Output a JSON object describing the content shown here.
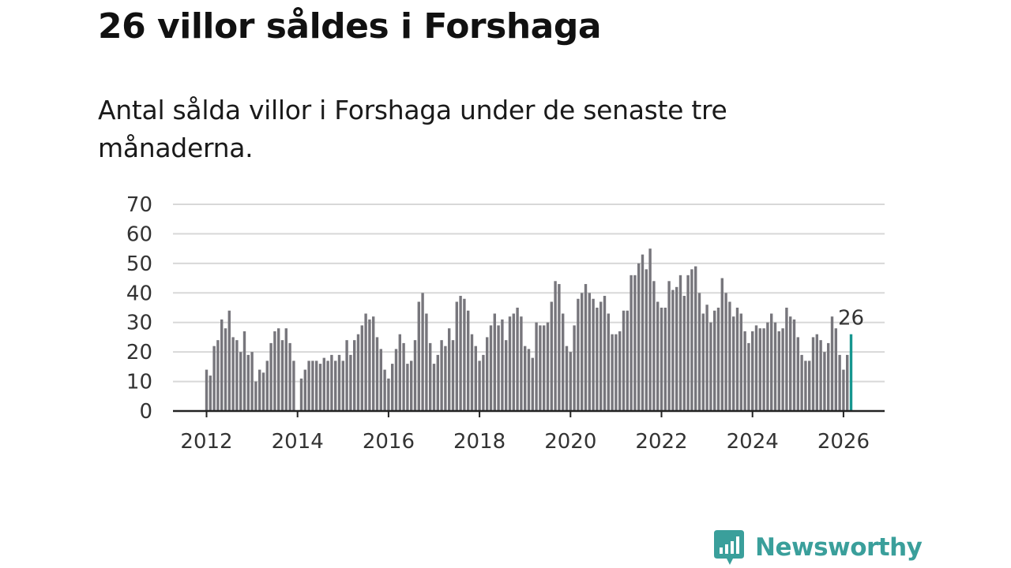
{
  "header": {
    "title": "26 villor såldes i Forshaga",
    "subtitle": "Antal sålda villor i Forshaga under de senaste tre månaderna."
  },
  "brand": {
    "name": "Newsworthy",
    "color": "#3a9f9b",
    "icon": "bar-chart-speech-bubble-icon"
  },
  "colors": {
    "bar": "#77767c",
    "highlight": "#16968f",
    "grid": "#d8d8d8",
    "axis": "#222222"
  },
  "chart_data": {
    "type": "bar",
    "title": "",
    "xlabel": "",
    "ylabel": "",
    "ylim": [
      0,
      70
    ],
    "y_ticks": [
      0,
      10,
      20,
      30,
      40,
      50,
      60,
      70
    ],
    "x_ticks": [
      "2012",
      "2014",
      "2016",
      "2018",
      "2020",
      "2022",
      "2024",
      "2026"
    ],
    "x_start": "2012-01",
    "period": "month",
    "values": [
      14,
      12,
      22,
      24,
      31,
      28,
      34,
      25,
      24,
      20,
      27,
      19,
      20,
      10,
      14,
      13,
      17,
      23,
      27,
      28,
      24,
      28,
      23,
      17,
      0,
      11,
      14,
      17,
      17,
      17,
      16,
      18,
      17,
      19,
      17,
      19,
      17,
      24,
      19,
      24,
      26,
      29,
      33,
      31,
      32,
      25,
      21,
      14,
      11,
      16,
      21,
      26,
      23,
      16,
      17,
      24,
      37,
      40,
      33,
      23,
      16,
      19,
      24,
      22,
      28,
      24,
      37,
      39,
      38,
      34,
      26,
      22,
      17,
      19,
      25,
      29,
      33,
      29,
      31,
      24,
      32,
      33,
      35,
      32,
      22,
      21,
      18,
      30,
      29,
      29,
      30,
      37,
      44,
      43,
      33,
      22,
      20,
      29,
      38,
      40,
      43,
      40,
      38,
      35,
      37,
      39,
      33,
      26,
      26,
      27,
      34,
      34,
      46,
      46,
      50,
      53,
      48,
      55,
      44,
      37,
      35,
      35,
      44,
      41,
      42,
      46,
      39,
      46,
      48,
      49,
      40,
      33,
      36,
      30,
      34,
      35,
      45,
      40,
      37,
      32,
      35,
      33,
      27,
      23,
      27,
      29,
      28,
      28,
      30,
      33,
      30,
      27,
      28,
      35,
      32,
      31,
      25,
      19,
      17,
      17,
      25,
      26,
      24,
      20,
      23,
      32,
      28,
      19,
      14,
      19,
      26
    ],
    "highlight_last": true,
    "annotations": [
      {
        "label": "26"
      }
    ]
  }
}
